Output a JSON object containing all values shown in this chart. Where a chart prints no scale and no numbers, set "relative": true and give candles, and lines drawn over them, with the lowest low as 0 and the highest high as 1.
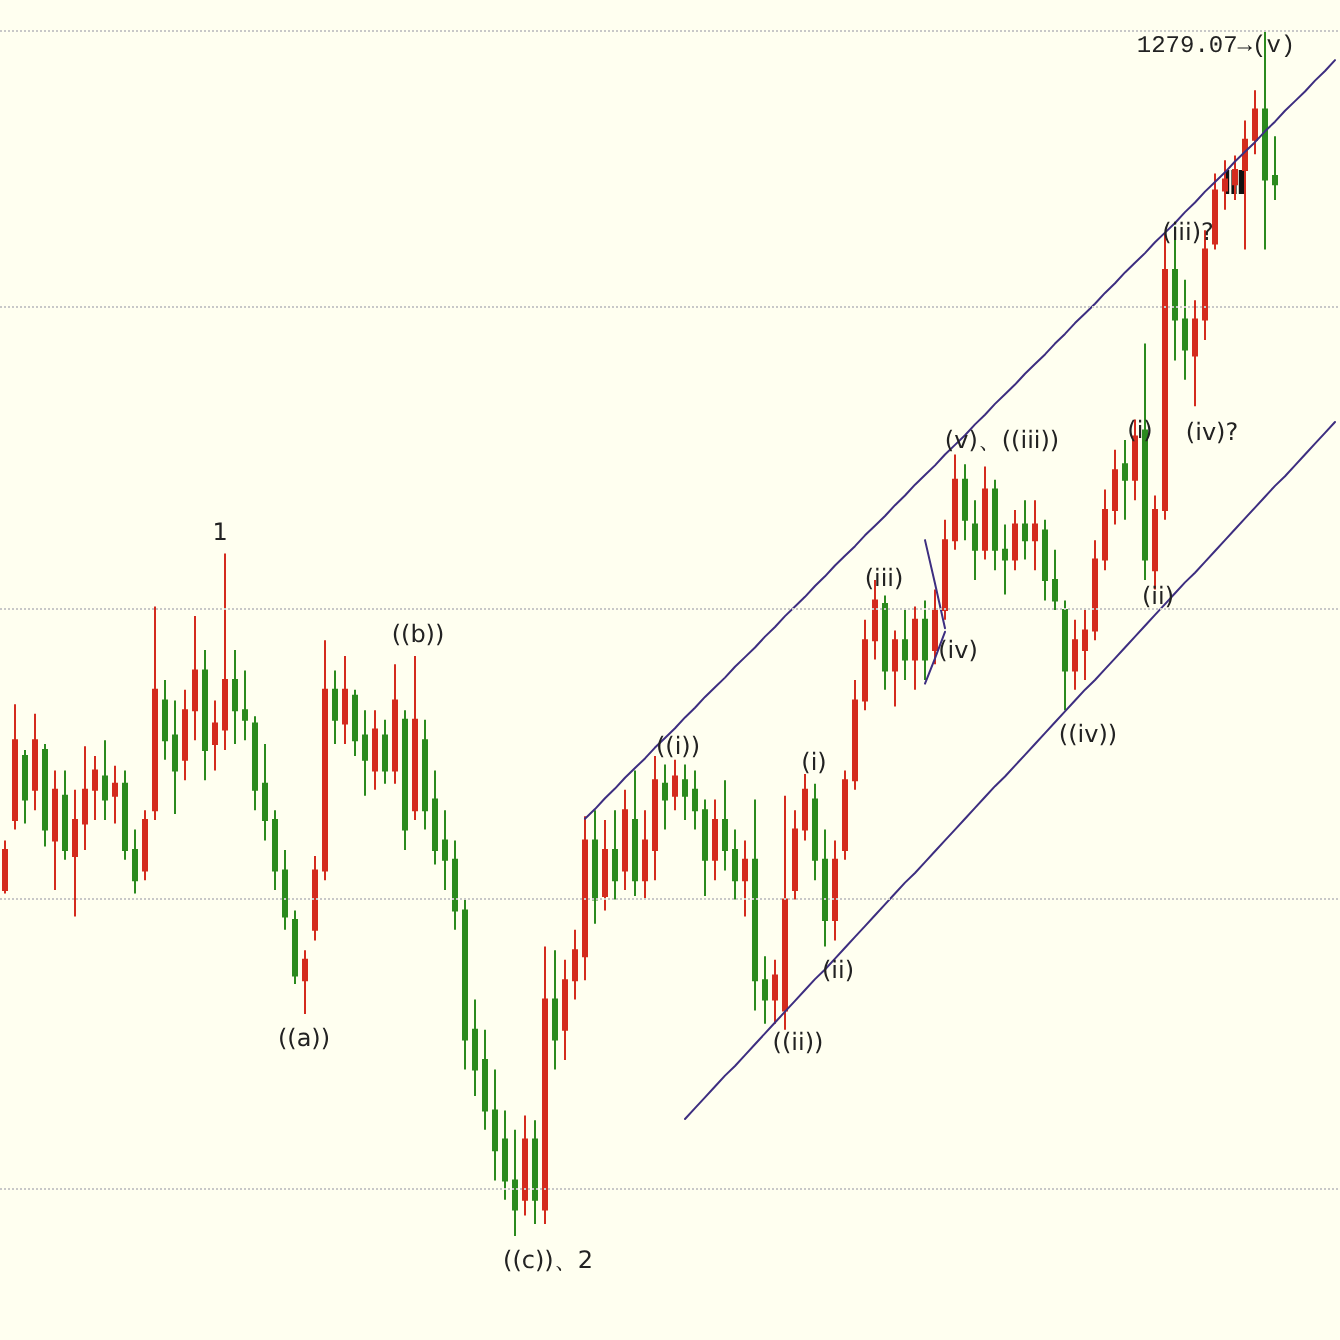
{
  "chart_data": {
    "type": "candlestick",
    "relative": true,
    "categories": [
      null,
      null,
      null,
      null,
      null,
      null,
      null,
      null,
      null,
      null,
      null,
      null,
      null,
      null,
      null,
      null,
      null,
      null,
      null,
      null,
      null,
      null,
      null,
      null,
      null,
      null,
      null,
      null,
      null,
      null,
      null,
      null,
      null,
      null,
      null,
      null,
      null,
      null,
      null,
      null,
      null,
      null,
      null,
      null,
      null,
      null,
      null,
      null,
      null,
      null,
      null,
      null,
      null,
      null,
      null,
      null,
      null,
      null,
      null,
      null,
      null,
      null,
      null,
      null,
      null,
      null,
      null,
      null,
      null,
      null,
      null,
      null,
      null,
      null,
      null,
      null,
      null,
      null,
      null,
      null,
      null,
      null,
      null,
      null,
      null,
      null,
      null,
      null,
      null,
      null,
      null,
      null,
      null,
      null,
      null,
      null,
      null,
      null,
      null,
      null,
      null,
      null,
      null,
      null,
      null,
      null,
      null,
      null,
      null,
      null,
      null,
      null,
      null,
      null,
      null,
      null,
      null,
      null,
      null,
      null,
      null,
      null,
      null,
      null,
      null,
      null,
      null,
      null,
      null,
      null,
      null,
      null,
      null,
      null
    ],
    "ohlc": [
      [
        0.287,
        0.328,
        0.284,
        0.32
      ],
      [
        0.345,
        0.441,
        0.337,
        0.411
      ],
      [
        0.398,
        0.403,
        0.342,
        0.362
      ],
      [
        0.37,
        0.433,
        0.353,
        0.411
      ],
      [
        0.403,
        0.408,
        0.323,
        0.337
      ],
      [
        0.328,
        0.386,
        0.287,
        0.37
      ],
      [
        0.365,
        0.386,
        0.312,
        0.32
      ],
      [
        0.315,
        0.37,
        0.265,
        0.345
      ],
      [
        0.342,
        0.406,
        0.32,
        0.37
      ],
      [
        0.37,
        0.398,
        0.345,
        0.386
      ],
      [
        0.381,
        0.411,
        0.345,
        0.362
      ],
      [
        0.365,
        0.39,
        0.342,
        0.375
      ],
      [
        0.375,
        0.386,
        0.312,
        0.32
      ],
      [
        0.32,
        0.337,
        0.284,
        0.295
      ],
      [
        0.303,
        0.353,
        0.295,
        0.345
      ],
      [
        0.353,
        0.522,
        0.345,
        0.453
      ],
      [
        0.444,
        0.461,
        0.395,
        0.411
      ],
      [
        0.415,
        0.444,
        0.35,
        0.386
      ],
      [
        0.395,
        0.453,
        0.378,
        0.436
      ],
      [
        0.436,
        0.514,
        0.411,
        0.469
      ],
      [
        0.469,
        0.486,
        0.378,
        0.403
      ],
      [
        0.408,
        0.444,
        0.386,
        0.425
      ],
      [
        0.42,
        0.566,
        0.403,
        0.461
      ],
      [
        0.461,
        0.486,
        0.408,
        0.436
      ],
      [
        0.436,
        0.469,
        0.411,
        0.428
      ],
      [
        0.425,
        0.431,
        0.353,
        0.37
      ],
      [
        0.375,
        0.408,
        0.328,
        0.345
      ],
      [
        0.345,
        0.353,
        0.287,
        0.303
      ],
      [
        0.303,
        0.32,
        0.254,
        0.265
      ],
      [
        0.262,
        0.27,
        0.209,
        0.216
      ],
      [
        0.212,
        0.237,
        0.184,
        0.229
      ],
      [
        0.254,
        0.315,
        0.245,
        0.303
      ],
      [
        0.303,
        0.494,
        0.295,
        0.453
      ],
      [
        0.453,
        0.469,
        0.408,
        0.428
      ],
      [
        0.425,
        0.481,
        0.408,
        0.453
      ],
      [
        0.448,
        0.453,
        0.398,
        0.411
      ],
      [
        0.415,
        0.436,
        0.365,
        0.395
      ],
      [
        0.386,
        0.436,
        0.37,
        0.42
      ],
      [
        0.415,
        0.428,
        0.375,
        0.386
      ],
      [
        0.386,
        0.474,
        0.375,
        0.444
      ],
      [
        0.428,
        0.436,
        0.32,
        0.337
      ],
      [
        0.353,
        0.481,
        0.345,
        0.428
      ],
      [
        0.411,
        0.428,
        0.337,
        0.353
      ],
      [
        0.362,
        0.386,
        0.308,
        0.32
      ],
      [
        0.328,
        0.353,
        0.287,
        0.312
      ],
      [
        0.312,
        0.328,
        0.254,
        0.27
      ],
      [
        0.27,
        0.279,
        0.138,
        0.163
      ],
      [
        0.171,
        0.196,
        0.116,
        0.138
      ],
      [
        0.146,
        0.171,
        0.088,
        0.104
      ],
      [
        0.104,
        0.138,
        0.046,
        0.071
      ],
      [
        0.08,
        0.104,
        0.03,
        0.046
      ],
      [
        0.046,
        0.088,
        0,
        0.022
      ],
      [
        0.03,
        0.1,
        0.017,
        0.08
      ],
      [
        0.08,
        0.096,
        0.01,
        0.03
      ],
      [
        0.022,
        0.24,
        0.01,
        0.196
      ],
      [
        0.196,
        0.237,
        0.138,
        0.163
      ],
      [
        0.171,
        0.229,
        0.146,
        0.212
      ],
      [
        0.212,
        0.254,
        0.196,
        0.237
      ],
      [
        0.232,
        0.348,
        0.212,
        0.328
      ],
      [
        0.328,
        0.353,
        0.259,
        0.279
      ],
      [
        0.282,
        0.345,
        0.27,
        0.32
      ],
      [
        0.32,
        0.353,
        0.279,
        0.295
      ],
      [
        0.303,
        0.37,
        0.287,
        0.353
      ],
      [
        0.345,
        0.386,
        0.282,
        0.295
      ],
      [
        0.295,
        0.353,
        0.279,
        0.328
      ],
      [
        0.32,
        0.398,
        0.295,
        0.378
      ],
      [
        0.375,
        0.391,
        0.337,
        0.362
      ],
      [
        0.365,
        0.395,
        0.353,
        0.381
      ],
      [
        0.378,
        0.391,
        0.345,
        0.365
      ],
      [
        0.37,
        0.386,
        0.337,
        0.353
      ],
      [
        0.353,
        0.362,
        0.282,
        0.312
      ],
      [
        0.312,
        0.362,
        0.295,
        0.345
      ],
      [
        0.345,
        0.378,
        0.303,
        0.32
      ],
      [
        0.32,
        0.337,
        0.279,
        0.295
      ],
      [
        0.295,
        0.328,
        0.265,
        0.312
      ],
      [
        0.312,
        0.362,
        0.187,
        0.212
      ],
      [
        0.212,
        0.232,
        0.176,
        0.196
      ],
      [
        0.196,
        0.229,
        0.176,
        0.216
      ],
      [
        0.187,
        0.365,
        0.171,
        0.279
      ],
      [
        0.287,
        0.353,
        0.279,
        0.337
      ],
      [
        0.337,
        0.383,
        0.328,
        0.37
      ],
      [
        0.362,
        0.375,
        0.295,
        0.312
      ],
      [
        0.312,
        0.337,
        0.24,
        0.262
      ],
      [
        0.262,
        0.328,
        0.245,
        0.312
      ],
      [
        0.32,
        0.386,
        0.312,
        0.378
      ],
      [
        0.378,
        0.461,
        0.37,
        0.444
      ],
      [
        0.444,
        0.511,
        0.436,
        0.494
      ],
      [
        0.494,
        0.544,
        0.478,
        0.527
      ],
      [
        0.524,
        0.531,
        0.453,
        0.469
      ],
      [
        0.469,
        0.502,
        0.439,
        0.494
      ],
      [
        0.494,
        0.519,
        0.461,
        0.478
      ],
      [
        0.478,
        0.522,
        0.453,
        0.511
      ],
      [
        0.511,
        0.527,
        0.461,
        0.478
      ],
      [
        0.486,
        0.536,
        0.474,
        0.519
      ],
      [
        0.519,
        0.594,
        0.511,
        0.577
      ],
      [
        0.577,
        0.648,
        0.569,
        0.627
      ],
      [
        0.627,
        0.64,
        0.577,
        0.594
      ],
      [
        0.59,
        0.61,
        0.544,
        0.569
      ],
      [
        0.569,
        0.638,
        0.561,
        0.619
      ],
      [
        0.619,
        0.627,
        0.552,
        0.569
      ],
      [
        0.569,
        0.59,
        0.532,
        0.561
      ],
      [
        0.561,
        0.602,
        0.552,
        0.59
      ],
      [
        0.59,
        0.61,
        0.561,
        0.577
      ],
      [
        0.577,
        0.61,
        0.552,
        0.59
      ],
      [
        0.585,
        0.594,
        0.527,
        0.544
      ],
      [
        0.544,
        0.569,
        0.519,
        0.527
      ],
      [
        0.519,
        0.527,
        0.436,
        0.469
      ],
      [
        0.469,
        0.511,
        0.453,
        0.494
      ],
      [
        0.486,
        0.519,
        0.461,
        0.502
      ],
      [
        0.502,
        0.577,
        0.494,
        0.561
      ],
      [
        0.561,
        0.619,
        0.552,
        0.602
      ],
      [
        0.602,
        0.652,
        0.59,
        0.635
      ],
      [
        0.64,
        0.66,
        0.594,
        0.627
      ],
      [
        0.627,
        0.677,
        0.61,
        0.663
      ],
      [
        0.668,
        0.74,
        0.544,
        0.561
      ],
      [
        0.552,
        0.614,
        0.536,
        0.602
      ],
      [
        0.602,
        0.831,
        0.594,
        0.801
      ],
      [
        0.801,
        0.837,
        0.726,
        0.76
      ],
      [
        0.76,
        0.793,
        0.71,
        0.735
      ],
      [
        0.73,
        0.776,
        0.688,
        0.76
      ],
      [
        0.76,
        0.834,
        0.743,
        0.818
      ],
      [
        0.823,
        0.881,
        0.818,
        0.867
      ],
      [
        0.867,
        0.892,
        0.851,
        0.876
      ],
      [
        0.872,
        0.896,
        0.859,
        0.884
      ],
      [
        0.884,
        0.925,
        0.818,
        0.909
      ],
      [
        0.909,
        0.95,
        0.897,
        0.934
      ],
      [
        0.934,
        1,
        0.818,
        0.876
      ],
      [
        0.879,
        0.912,
        0.859,
        0.872
      ],
      null,
      null,
      null,
      null,
      null,
      null
    ],
    "colors": [
      "#d42b1e",
      "#d42b1e",
      "#2b8a1e",
      "#d42b1e",
      "#2b8a1e",
      "#d42b1e",
      "#2b8a1e",
      "#d42b1e",
      "#d42b1e",
      "#d42b1e",
      "#2b8a1e",
      "#d42b1e",
      "#2b8a1e",
      "#2b8a1e",
      "#d42b1e",
      "#d42b1e",
      "#2b8a1e",
      "#2b8a1e",
      "#d42b1e",
      "#d42b1e",
      "#2b8a1e",
      "#d42b1e",
      "#d42b1e",
      "#2b8a1e",
      "#2b8a1e",
      "#2b8a1e",
      "#2b8a1e",
      "#2b8a1e",
      "#2b8a1e",
      "#2b8a1e",
      "#d42b1e",
      "#d42b1e",
      "#d42b1e",
      "#2b8a1e",
      "#d42b1e",
      "#2b8a1e",
      "#2b8a1e",
      "#d42b1e",
      "#2b8a1e",
      "#d42b1e",
      "#2b8a1e",
      "#d42b1e",
      "#2b8a1e",
      "#2b8a1e",
      "#2b8a1e",
      "#2b8a1e",
      "#2b8a1e",
      "#2b8a1e",
      "#2b8a1e",
      "#2b8a1e",
      "#2b8a1e",
      "#2b8a1e",
      "#d42b1e",
      "#2b8a1e",
      "#d42b1e",
      "#2b8a1e",
      "#d42b1e",
      "#d42b1e",
      "#d42b1e",
      "#2b8a1e",
      "#d42b1e",
      "#2b8a1e",
      "#d42b1e",
      "#2b8a1e",
      "#d42b1e",
      "#d42b1e",
      "#2b8a1e",
      "#d42b1e",
      "#2b8a1e",
      "#2b8a1e",
      "#2b8a1e",
      "#d42b1e",
      "#2b8a1e",
      "#2b8a1e",
      "#d42b1e",
      "#2b8a1e",
      "#2b8a1e",
      "#d42b1e",
      "#d42b1e",
      "#d42b1e",
      "#d42b1e",
      "#2b8a1e",
      "#2b8a1e",
      "#d42b1e",
      "#d42b1e",
      "#d42b1e",
      "#d42b1e",
      "#d42b1e",
      "#2b8a1e",
      "#d42b1e",
      "#2b8a1e",
      "#d42b1e",
      "#2b8a1e",
      "#d42b1e",
      "#d42b1e",
      "#d42b1e",
      "#2b8a1e",
      "#2b8a1e",
      "#d42b1e",
      "#2b8a1e",
      "#2b8a1e",
      "#d42b1e",
      "#2b8a1e",
      "#d42b1e",
      "#2b8a1e",
      "#2b8a1e",
      "#2b8a1e",
      "#d42b1e",
      "#d42b1e",
      "#d42b1e",
      "#d42b1e",
      "#d42b1e",
      "#2b8a1e",
      "#d42b1e",
      "#2b8a1e",
      "#d42b1e",
      "#d42b1e",
      "#2b8a1e",
      "#2b8a1e",
      "#d42b1e",
      "#d42b1e",
      "#d42b1e",
      "#d42b1e",
      "#d42b1e",
      "#d42b1e",
      "#d42b1e",
      "#2b8a1e",
      "#2b8a1e",
      null,
      null,
      null,
      null,
      null,
      null
    ],
    "series": [
      {
        "type": "line",
        "color": "#3d2e80",
        "values": [
          null,
          null,
          null,
          null,
          null,
          null,
          null,
          null,
          null,
          null,
          null,
          null,
          null,
          null,
          null,
          null,
          null,
          null,
          null,
          null,
          null,
          null,
          null,
          null,
          null,
          null,
          null,
          null,
          null,
          null,
          null,
          null,
          null,
          null,
          null,
          null,
          null,
          null,
          null,
          null,
          null,
          null,
          null,
          null,
          null,
          null,
          null,
          null,
          null,
          null,
          null,
          null,
          null,
          null,
          null,
          null,
          null,
          null,
          0.346,
          0.354,
          0.363,
          0.371,
          0.38,
          0.388,
          0.396,
          0.405,
          0.413,
          0.421,
          0.43,
          0.438,
          0.447,
          0.455,
          0.463,
          0.472,
          0.48,
          0.488,
          0.497,
          0.505,
          0.514,
          0.522,
          0.53,
          0.539,
          0.547,
          0.556,
          0.564,
          0.572,
          0.581,
          0.589,
          0.597,
          0.606,
          0.614,
          0.623,
          0.631,
          0.639,
          0.648,
          0.656,
          0.664,
          0.673,
          0.681,
          0.69,
          0.698,
          0.706,
          0.715,
          0.723,
          0.731,
          0.74,
          0.748,
          0.757,
          0.765,
          0.773,
          0.782,
          0.79,
          0.799,
          0.807,
          0.815,
          0.824,
          0.832,
          0.84,
          0.849,
          0.857,
          0.866,
          0.874,
          0.882,
          0.891,
          0.899,
          0.907,
          0.916,
          0.924,
          0.933,
          0.941,
          0.949,
          0.958,
          0.966,
          0.975
        ]
      },
      {
        "type": "line",
        "color": "#3d2e80",
        "values": [
          null,
          null,
          null,
          null,
          null,
          null,
          null,
          null,
          null,
          null,
          null,
          null,
          null,
          null,
          null,
          null,
          null,
          null,
          null,
          null,
          null,
          null,
          null,
          null,
          null,
          null,
          null,
          null,
          null,
          null,
          null,
          null,
          null,
          null,
          null,
          null,
          null,
          null,
          null,
          null,
          null,
          null,
          null,
          null,
          null,
          null,
          null,
          null,
          null,
          null,
          null,
          null,
          null,
          null,
          null,
          null,
          null,
          null,
          null,
          null,
          null,
          null,
          null,
          null,
          null,
          null,
          null,
          null,
          0.097,
          0.106,
          0.115,
          0.124,
          0.133,
          0.141,
          0.15,
          0.159,
          0.168,
          0.177,
          0.186,
          0.195,
          0.204,
          0.213,
          0.221,
          0.23,
          0.239,
          0.248,
          0.257,
          0.266,
          0.275,
          0.284,
          0.293,
          0.301,
          0.31,
          0.319,
          0.328,
          0.337,
          0.346,
          0.355,
          0.364,
          0.373,
          0.381,
          0.39,
          0.399,
          0.408,
          0.417,
          0.426,
          0.435,
          0.444,
          0.453,
          0.461,
          0.47,
          0.479,
          0.488,
          0.497,
          0.506,
          0.515,
          0.524,
          0.533,
          0.542,
          0.55,
          0.559,
          0.568,
          0.577,
          0.586,
          0.595,
          0.604,
          0.613,
          0.622,
          0.63,
          0.639,
          0.648,
          0.657,
          0.666,
          0.675
        ]
      },
      {
        "type": "line",
        "color": "#3d2e80",
        "values": [
          null,
          null,
          null,
          null,
          null,
          null,
          null,
          null,
          null,
          null,
          null,
          null,
          null,
          null,
          null,
          null,
          null,
          null,
          null,
          null,
          null,
          null,
          null,
          null,
          null,
          null,
          null,
          null,
          null,
          null,
          null,
          null,
          null,
          null,
          null,
          null,
          null,
          null,
          null,
          null,
          null,
          null,
          null,
          null,
          null,
          null,
          null,
          null,
          null,
          null,
          null,
          null,
          null,
          null,
          null,
          null,
          null,
          null,
          null,
          null,
          null,
          null,
          null,
          null,
          null,
          null,
          null,
          null,
          null,
          null,
          null,
          null,
          null,
          null,
          null,
          null,
          null,
          null,
          null,
          null,
          null,
          null,
          null,
          null,
          null,
          null,
          null,
          null,
          null,
          null,
          null,
          null,
          0.577,
          0.541,
          0.504,
          null,
          null,
          null,
          null,
          null,
          null,
          null,
          null,
          null,
          null,
          null,
          null,
          null,
          null,
          null,
          null,
          null,
          null,
          null,
          null,
          null,
          null,
          null,
          null,
          null,
          null,
          null,
          null,
          null,
          null,
          null,
          null,
          null,
          null,
          null,
          null,
          null,
          null,
          null
        ]
      },
      {
        "type": "line",
        "color": "#3d2e80",
        "values": [
          null,
          null,
          null,
          null,
          null,
          null,
          null,
          null,
          null,
          null,
          null,
          null,
          null,
          null,
          null,
          null,
          null,
          null,
          null,
          null,
          null,
          null,
          null,
          null,
          null,
          null,
          null,
          null,
          null,
          null,
          null,
          null,
          null,
          null,
          null,
          null,
          null,
          null,
          null,
          null,
          null,
          null,
          null,
          null,
          null,
          null,
          null,
          null,
          null,
          null,
          null,
          null,
          null,
          null,
          null,
          null,
          null,
          null,
          null,
          null,
          null,
          null,
          null,
          null,
          null,
          null,
          null,
          null,
          null,
          null,
          null,
          null,
          null,
          null,
          null,
          null,
          null,
          null,
          null,
          null,
          null,
          null,
          null,
          null,
          null,
          null,
          null,
          null,
          null,
          null,
          null,
          null,
          0.458,
          0.479,
          0.501,
          null,
          null,
          null,
          null,
          null,
          null,
          null,
          null,
          null,
          null,
          null,
          null,
          null,
          null,
          null,
          null,
          null,
          null,
          null,
          null,
          null,
          null,
          null,
          null,
          null,
          null,
          null,
          null,
          null,
          null,
          null,
          null,
          null,
          null,
          null,
          null,
          null,
          null,
          null
        ]
      }
    ],
    "ref_lines": [
      {
        "axis": "y",
        "value": 1,
        "color": "#c8c8c8",
        "line_style": "dotted"
      },
      {
        "axis": "y",
        "value": 0.77,
        "color": "#c8c8c8",
        "line_style": "dotted"
      },
      {
        "axis": "y",
        "value": 0.52,
        "color": "#c8c8c8",
        "line_style": "dotted"
      },
      {
        "axis": "y",
        "value": 0.279,
        "color": "#c8c8c8",
        "line_style": "dotted"
      },
      {
        "axis": "y",
        "value": 0.041,
        "color": "#c8c8c8",
        "line_style": "dotted"
      }
    ],
    "annotations": [
      "1",
      "((a))",
      "((b))",
      "((c))、2",
      "((i))",
      "((ii))",
      "(i)",
      "(ii)",
      "(iii)",
      "(iv)",
      "(v)、((iii))",
      "((iv))",
      "(i)",
      "(ii)",
      "(iii)?",
      "(iv)?",
      "1279.07→(v)"
    ]
  }
}
